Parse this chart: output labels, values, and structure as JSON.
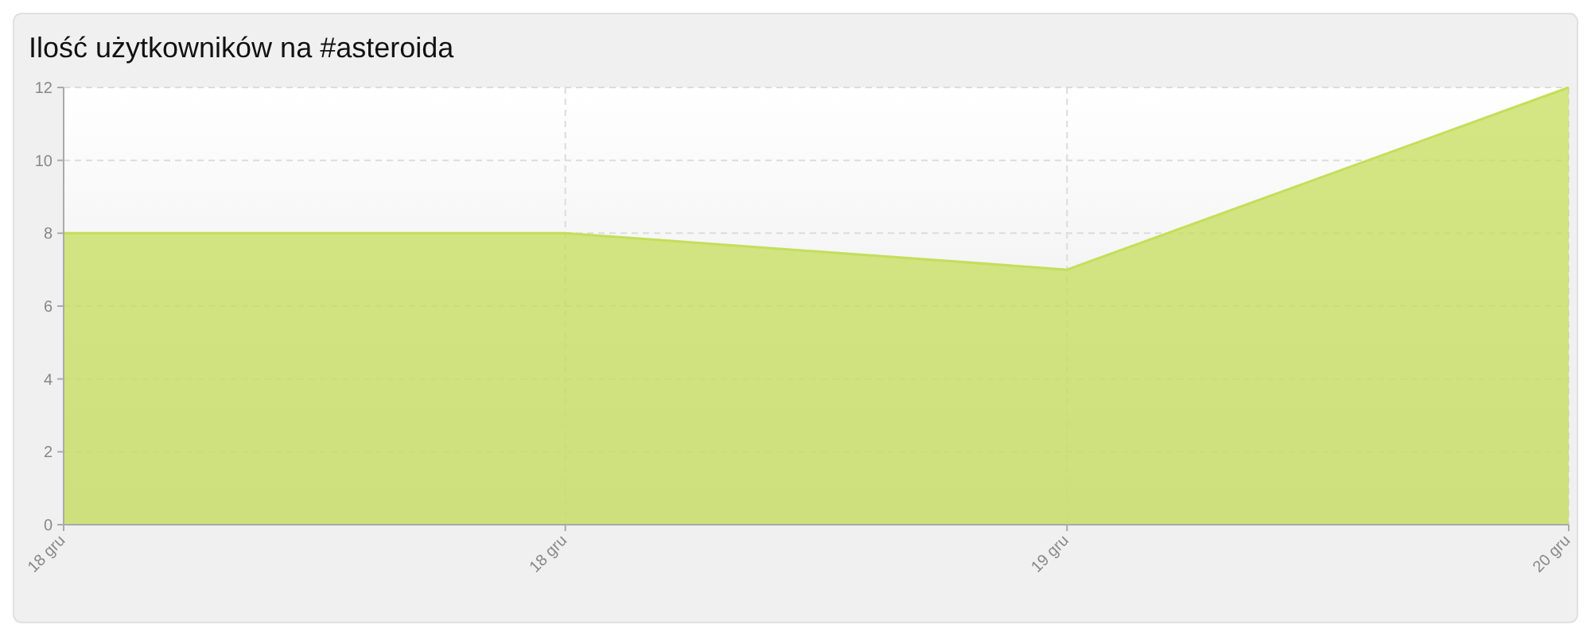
{
  "chart_data": {
    "type": "area",
    "title": "Ilość użytkowników na #asteroida",
    "categories": [
      "18 gru",
      "18 gru",
      "19 gru",
      "20 gru"
    ],
    "series": [
      {
        "color": "#c4de5a",
        "values": [
          8,
          8,
          7,
          12
        ]
      }
    ],
    "ylim": [
      0,
      12
    ],
    "yticks": [
      0,
      2,
      4,
      6,
      8,
      10,
      12
    ],
    "grid": true
  }
}
